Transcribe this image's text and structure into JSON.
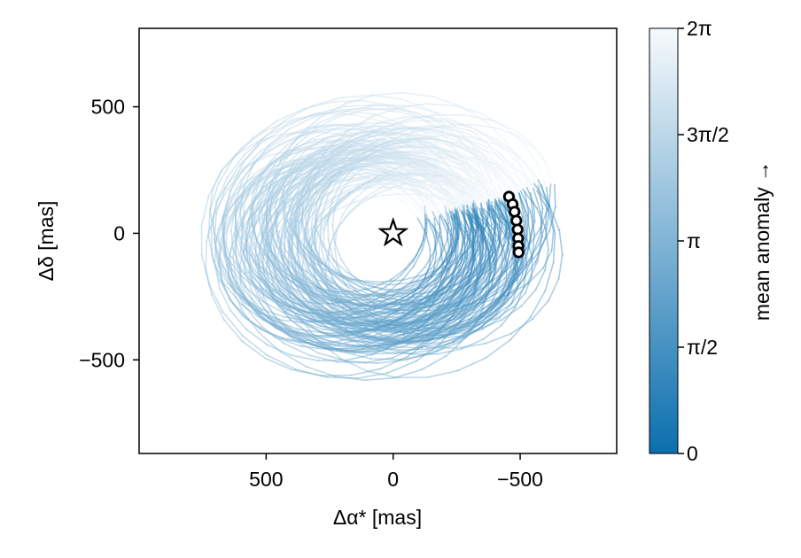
{
  "chart_data": {
    "type": "line",
    "title": "",
    "xlabel": "Δα* [mas]",
    "ylabel": "Δδ [mas]",
    "x_axis_inverted": true,
    "xlim": [
      1000,
      -880
    ],
    "ylim": [
      -870,
      810
    ],
    "x_ticks": [
      500,
      0,
      -500
    ],
    "x_tick_labels": [
      "500",
      "0",
      "−500"
    ],
    "y_ticks": [
      500,
      0,
      -500
    ],
    "y_tick_labels": [
      "500",
      "0",
      "−500"
    ],
    "grid": false,
    "legend": "none",
    "central_star": {
      "x": 0,
      "y": 0,
      "marker": "star"
    },
    "orbit_color_map": "blues_reversed",
    "orbit_count": 120,
    "orbit_family": {
      "center_x_range": [
        -140,
        240
      ],
      "center_y_range": [
        -110,
        70
      ],
      "semi_major_range": [
        340,
        560
      ],
      "semi_minor_ratio_range": [
        0.62,
        0.95
      ]
    },
    "epoch_markers": [
      {
        "x": -456,
        "y": 145
      },
      {
        "x": -470,
        "y": 115
      },
      {
        "x": -478,
        "y": 85
      },
      {
        "x": -485,
        "y": 50
      },
      {
        "x": -490,
        "y": 15
      },
      {
        "x": -492,
        "y": -20
      },
      {
        "x": -493,
        "y": -50
      },
      {
        "x": -494,
        "y": -75
      }
    ],
    "colorbar": {
      "label": "mean anomaly →",
      "range": [
        0,
        6.2832
      ],
      "ticks": [
        0,
        1.5708,
        3.1416,
        4.7124,
        6.2832
      ],
      "tick_labels": [
        "0",
        "π/2",
        "π",
        "3π/2",
        "2π"
      ],
      "color_low": "#0b6fae",
      "color_high": "#f7fafc"
    }
  }
}
